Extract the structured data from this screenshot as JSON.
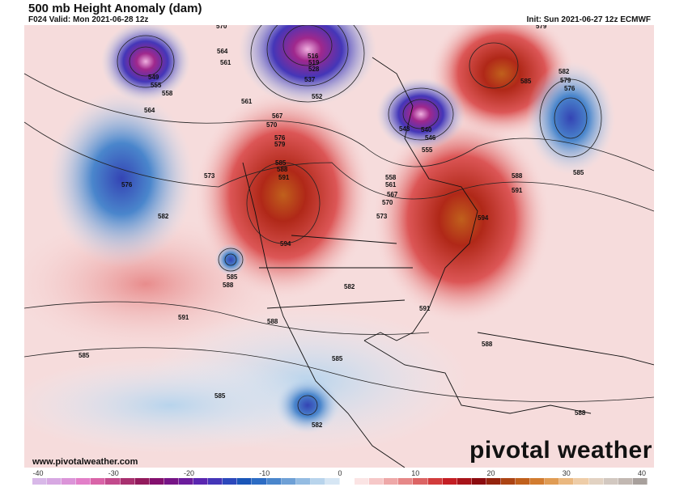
{
  "header": {
    "title": "500 mb Height Anomaly (dam)",
    "valid": "F024 Valid: Mon 2021-06-28 12z",
    "init": "Init: Sun 2021-06-27 12z ECMWF"
  },
  "footer": {
    "website": "www.pivotalweather.com",
    "brand": "pivotal weather"
  },
  "colorbar": {
    "ticks": [
      "-40",
      "-30",
      "-20",
      "-10",
      "0",
      "10",
      "20",
      "30",
      "40"
    ],
    "colors": [
      "#d8b8e8",
      "#d7a8e2",
      "#db94d8",
      "#e27fc8",
      "#d964a8",
      "#c24a8c",
      "#a8306f",
      "#921a5c",
      "#84106e",
      "#761486",
      "#6c1c9c",
      "#5a26b0",
      "#4436b8",
      "#2c48bc",
      "#1a56b8",
      "#2c6cc4",
      "#4a86cc",
      "#6ea0d6",
      "#94bce2",
      "#b8d4ec",
      "#d6e6f4",
      "#ffffff",
      "#fbe4e4",
      "#f6c8c8",
      "#eea8a8",
      "#e68888",
      "#dc6464",
      "#d23c3c",
      "#c41e24",
      "#a8141a",
      "#8c0c10",
      "#94240e",
      "#ac4414",
      "#c0601c",
      "#d27c30",
      "#e09c54",
      "#eab880",
      "#eecda8",
      "#e2d2c2",
      "#d2c8c0",
      "#c2b8b2",
      "#a8a09c"
    ]
  },
  "contour_labels": [
    "549",
    "555",
    "558",
    "564",
    "570",
    "564",
    "561",
    "516",
    "519",
    "528",
    "537",
    "561",
    "552",
    "567",
    "570",
    "576",
    "579",
    "585",
    "588",
    "591",
    "573",
    "576",
    "582",
    "585",
    "588",
    "594",
    "591",
    "585",
    "585",
    "588",
    "582",
    "585",
    "582",
    "591",
    "594",
    "591",
    "588",
    "585",
    "582",
    "579",
    "576",
    "579",
    "585",
    "540",
    "546",
    "543",
    "555",
    "558",
    "561",
    "567",
    "570",
    "573",
    "588",
    "588"
  ]
}
